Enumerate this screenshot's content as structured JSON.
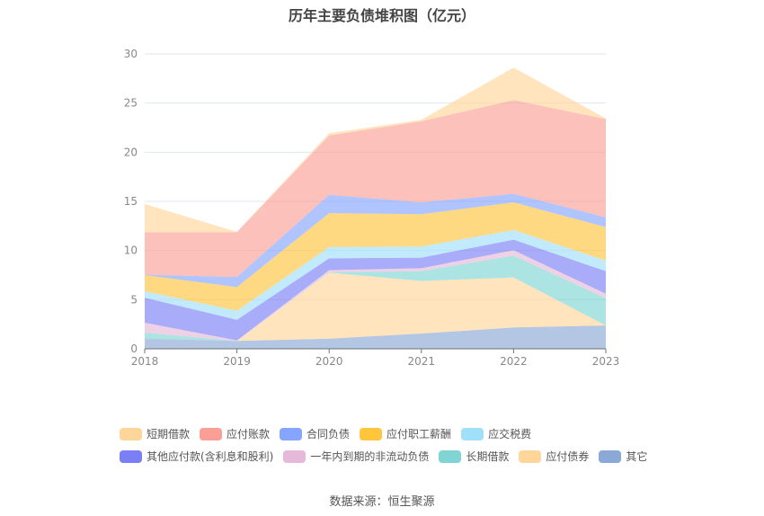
{
  "chart_data": {
    "type": "area",
    "stacked": true,
    "title": "历年主要负债堆积图（亿元）",
    "categories": [
      "2018",
      "2019",
      "2020",
      "2021",
      "2022",
      "2023"
    ],
    "ylim": [
      0,
      30
    ],
    "yticks": [
      "0",
      "5",
      "10",
      "15",
      "20",
      "25",
      "30"
    ],
    "grid": true,
    "legend_position": "bottom",
    "series": [
      {
        "name": "其它",
        "color": "#8aa9d6",
        "values": [
          1.03,
          0.8,
          1.03,
          1.55,
          2.17,
          2.38
        ]
      },
      {
        "name": "应付债券",
        "color": "#ffd699",
        "values": [
          0,
          0,
          6.72,
          5.35,
          5.09,
          0
        ]
      },
      {
        "name": "长期借款",
        "color": "#80d4d4",
        "values": [
          0.62,
          0,
          0.05,
          1.0,
          2.22,
          2.77
        ]
      },
      {
        "name": "一年内到期的非流动负债",
        "color": "#e6b8d9",
        "values": [
          1.0,
          0.05,
          0.2,
          0.3,
          0.55,
          0.45
        ]
      },
      {
        "name": "其他应付款(含利息和股利)",
        "color": "#7b7ff5",
        "values": [
          2.55,
          2.1,
          1.2,
          1.07,
          1.07,
          2.3
        ]
      },
      {
        "name": "应交税费",
        "color": "#a0e0fa",
        "values": [
          0.65,
          0.92,
          1.15,
          1.13,
          0.98,
          1.07
        ]
      },
      {
        "name": "应付职工薪酬",
        "color": "#ffc53d",
        "values": [
          1.65,
          2.41,
          3.45,
          3.3,
          2.82,
          3.41
        ]
      },
      {
        "name": "合同负债",
        "color": "#85a5ff",
        "values": [
          0.05,
          1.02,
          1.87,
          1.2,
          0.87,
          1.0
        ]
      },
      {
        "name": "应付账款",
        "color": "#fa9f95",
        "values": [
          4.3,
          4.57,
          6.03,
          8.25,
          9.53,
          9.99
        ]
      },
      {
        "name": "短期借款",
        "color": "#ffd699",
        "values": [
          2.87,
          0.03,
          0.23,
          0.15,
          3.3,
          0.08
        ]
      }
    ],
    "legend_order": [
      "短期借款",
      "应付账款",
      "合同负债",
      "应付职工薪酬",
      "应交税费",
      "其他应付款(含利息和股利)",
      "一年内到期的非流动负债",
      "长期借款",
      "应付债券",
      "其它"
    ]
  },
  "source": "数据来源：恒生聚源"
}
